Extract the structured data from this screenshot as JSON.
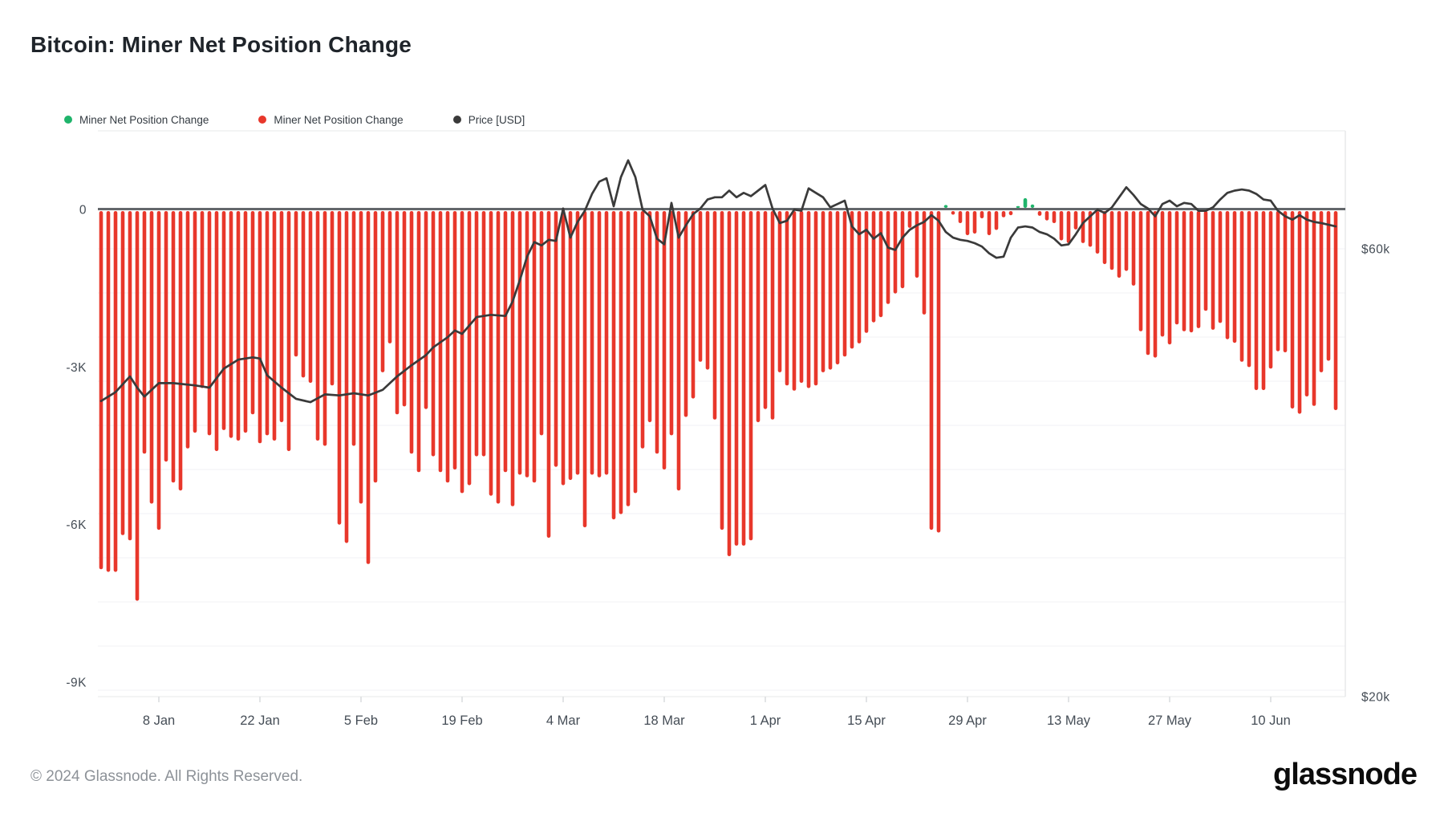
{
  "header": {
    "title": "Bitcoin: Miner Net Position Change"
  },
  "legend": {
    "items": [
      {
        "label": "Miner Net Position Change",
        "color": "#1fb46b",
        "icon": "green-dot"
      },
      {
        "label": "Miner Net Position Change",
        "color": "#e8372b",
        "icon": "red-dot"
      },
      {
        "label": "Price [USD]",
        "color": "#3a3a3a",
        "icon": "black-dot"
      }
    ]
  },
  "footer": {
    "copyright": "© 2024 Glassnode. All Rights Reserved.",
    "logo_text": "glassnode"
  },
  "colors": {
    "positive_bar": "#1fb46b",
    "negative_bar": "#e8372b",
    "price_line": "#3a3a3a",
    "zero_line": "#63676b",
    "grid_line": "#f2f2f4",
    "plot_border": "#e7e8ea",
    "tick_mark": "#d9dbdd",
    "axis_text": "#454d56",
    "background": "#ffffff"
  },
  "chart_data": {
    "type": "bar",
    "subtype": "bar+line-overlay",
    "title": "Bitcoin: Miner Net Position Change",
    "x_start_date": "2023-12-31",
    "x_interval": "1 day",
    "grid": "horizontal, very light",
    "legend_position": "top-left",
    "ylim_left_btc": [
      -9500,
      500
    ],
    "ylim_right_usd_k": [
      20,
      70
    ],
    "y_ticks_left": [
      {
        "label": "0",
        "value": 0
      },
      {
        "label": "-3K",
        "value": -3000
      },
      {
        "label": "-6K",
        "value": -6000
      },
      {
        "label": "-9K",
        "value": -9000
      }
    ],
    "y_ticks_right": [
      {
        "label": "$60k",
        "value": 60
      },
      {
        "label": "$20k",
        "value": 20
      }
    ],
    "x_ticks": [
      {
        "label": "8 Jan",
        "day": 8
      },
      {
        "label": "22 Jan",
        "day": 22
      },
      {
        "label": "5 Feb",
        "day": 36
      },
      {
        "label": "19 Feb",
        "day": 50
      },
      {
        "label": "4 Mar",
        "day": 64
      },
      {
        "label": "18 Mar",
        "day": 78
      },
      {
        "label": "1 Apr",
        "day": 92
      },
      {
        "label": "15 Apr",
        "day": 106
      },
      {
        "label": "29 Apr",
        "day": 120
      },
      {
        "label": "13 May",
        "day": 134
      },
      {
        "label": "27 May",
        "day": 148
      },
      {
        "label": "10 Jun",
        "day": 162
      }
    ],
    "bar_series": {
      "name": "Miner Net Position Change",
      "unit": "BTC",
      "positive_color": "#1fb46b",
      "negative_color": "#e8372b",
      "values": [
        -6850,
        -6900,
        -6900,
        -6200,
        -6300,
        -7450,
        -4650,
        -5600,
        -6100,
        -4800,
        -5200,
        -5350,
        -4550,
        -4250,
        -3400,
        -4300,
        -4600,
        -4200,
        -4350,
        -4400,
        -4250,
        -3900,
        -4450,
        -4300,
        -4400,
        -4050,
        -4600,
        -2800,
        -3200,
        -3300,
        -4400,
        -4500,
        -3350,
        -6000,
        -6350,
        -4500,
        -5600,
        -6750,
        -5200,
        -3100,
        -2550,
        -3900,
        -3750,
        -4650,
        -5000,
        -3800,
        -4700,
        -5000,
        -5200,
        -4950,
        -5400,
        -5250,
        -4700,
        -4700,
        -5450,
        -5600,
        -5000,
        -5650,
        -5050,
        -5100,
        -5200,
        -4300,
        -6250,
        -4900,
        -5250,
        -5150,
        -5050,
        -6050,
        -5050,
        -5100,
        -5050,
        -5900,
        -5800,
        -5650,
        -5400,
        -4550,
        -4050,
        -4650,
        -4950,
        -4300,
        -5350,
        -3950,
        -3600,
        -2900,
        -3050,
        -4000,
        -6100,
        -6600,
        -6400,
        -6400,
        -6300,
        -4050,
        -3800,
        -4000,
        -3100,
        -3350,
        -3450,
        -3300,
        -3400,
        -3350,
        -3100,
        -3050,
        -2950,
        -2800,
        -2650,
        -2550,
        -2350,
        -2150,
        -2050,
        -1800,
        -1600,
        -1500,
        -350,
        -1300,
        -2000,
        -6100,
        -6150,
        70,
        -100,
        -260,
        -490,
        -460,
        -170,
        -490,
        -390,
        -150,
        -110,
        50,
        200,
        80,
        -120,
        -210,
        -260,
        -590,
        -640,
        -380,
        -640,
        -710,
        -840,
        -1040,
        -1150,
        -1300,
        -1170,
        -1450,
        -2320,
        -2770,
        -2820,
        -2420,
        -2570,
        -2190,
        -2320,
        -2340,
        -2260,
        -1930,
        -2290,
        -2160,
        -2470,
        -2540,
        -2900,
        -3000,
        -3440,
        -3440,
        -3030,
        -2700,
        -2720,
        -3790,
        -3890,
        -3560,
        -3740,
        -3100,
        -2880,
        -3820
      ]
    },
    "line_series": {
      "name": "Price [USD]",
      "unit": "USD thousands",
      "color": "#3a3a3a",
      "points": [
        [
          0,
          46.4
        ],
        [
          2,
          47.2
        ],
        [
          4,
          48.6
        ],
        [
          5,
          47.6
        ],
        [
          6,
          46.8
        ],
        [
          8,
          48.0
        ],
        [
          10,
          48.0
        ],
        [
          13,
          47.8
        ],
        [
          15,
          47.6
        ],
        [
          17,
          49.3
        ],
        [
          19,
          50.1
        ],
        [
          21,
          50.3
        ],
        [
          22,
          50.2
        ],
        [
          23,
          48.7
        ],
        [
          25,
          47.6
        ],
        [
          27,
          46.6
        ],
        [
          29,
          46.3
        ],
        [
          31,
          47.0
        ],
        [
          33,
          46.9
        ],
        [
          35,
          47.1
        ],
        [
          37,
          46.9
        ],
        [
          39,
          47.4
        ],
        [
          41,
          48.6
        ],
        [
          43,
          49.6
        ],
        [
          45,
          50.5
        ],
        [
          46,
          51.2
        ],
        [
          48,
          52.1
        ],
        [
          49,
          52.7
        ],
        [
          50,
          52.4
        ],
        [
          52,
          53.9
        ],
        [
          54,
          54.1
        ],
        [
          56,
          54.0
        ],
        [
          57,
          55.3
        ],
        [
          58,
          57.2
        ],
        [
          59,
          59.3
        ],
        [
          60,
          60.6
        ],
        [
          61,
          60.3
        ],
        [
          62,
          60.8
        ],
        [
          63,
          60.7
        ],
        [
          64,
          63.6
        ],
        [
          65,
          61.0
        ],
        [
          66,
          62.4
        ],
        [
          67,
          63.4
        ],
        [
          68,
          64.9
        ],
        [
          69,
          66.0
        ],
        [
          70,
          66.3
        ],
        [
          71,
          63.8
        ],
        [
          72,
          66.4
        ],
        [
          73,
          67.9
        ],
        [
          74,
          66.4
        ],
        [
          75,
          63.5
        ],
        [
          76,
          62.9
        ],
        [
          77,
          60.9
        ],
        [
          78,
          60.4
        ],
        [
          79,
          64.1
        ],
        [
          80,
          61.0
        ],
        [
          81,
          62.1
        ],
        [
          82,
          63.1
        ],
        [
          83,
          63.6
        ],
        [
          84,
          64.4
        ],
        [
          85,
          64.6
        ],
        [
          86,
          64.6
        ],
        [
          87,
          65.2
        ],
        [
          88,
          64.6
        ],
        [
          89,
          65.0
        ],
        [
          90,
          64.7
        ],
        [
          91,
          65.2
        ],
        [
          92,
          65.7
        ],
        [
          93,
          63.6
        ],
        [
          94,
          62.3
        ],
        [
          95,
          62.5
        ],
        [
          96,
          63.5
        ],
        [
          97,
          63.4
        ],
        [
          98,
          65.4
        ],
        [
          99,
          65.0
        ],
        [
          100,
          64.6
        ],
        [
          101,
          63.7
        ],
        [
          102,
          64.0
        ],
        [
          103,
          64.3
        ],
        [
          104,
          62.0
        ],
        [
          105,
          61.3
        ],
        [
          106,
          61.7
        ],
        [
          107,
          60.9
        ],
        [
          108,
          61.4
        ],
        [
          109,
          60.1
        ],
        [
          110,
          59.9
        ],
        [
          111,
          61.0
        ],
        [
          112,
          61.7
        ],
        [
          113,
          62.1
        ],
        [
          114,
          62.4
        ],
        [
          115,
          63.0
        ],
        [
          116,
          62.5
        ],
        [
          117,
          61.5
        ],
        [
          118,
          61.0
        ],
        [
          119,
          60.8
        ],
        [
          120,
          60.7
        ],
        [
          121,
          60.5
        ],
        [
          122,
          60.2
        ],
        [
          123,
          59.6
        ],
        [
          124,
          59.2
        ],
        [
          125,
          59.3
        ],
        [
          126,
          61.0
        ],
        [
          127,
          61.9
        ],
        [
          128,
          62.0
        ],
        [
          129,
          61.9
        ],
        [
          130,
          61.5
        ],
        [
          131,
          61.3
        ],
        [
          132,
          60.9
        ],
        [
          133,
          60.3
        ],
        [
          134,
          60.4
        ],
        [
          135,
          61.3
        ],
        [
          136,
          62.3
        ],
        [
          137,
          62.9
        ],
        [
          138,
          63.5
        ],
        [
          139,
          63.2
        ],
        [
          140,
          63.7
        ],
        [
          141,
          64.6
        ],
        [
          142,
          65.5
        ],
        [
          143,
          64.8
        ],
        [
          144,
          64.0
        ],
        [
          145,
          63.6
        ],
        [
          146,
          62.9
        ],
        [
          147,
          64.0
        ],
        [
          148,
          64.3
        ],
        [
          149,
          63.8
        ],
        [
          150,
          64.1
        ],
        [
          151,
          64.0
        ],
        [
          152,
          63.4
        ],
        [
          153,
          63.4
        ],
        [
          154,
          63.7
        ],
        [
          155,
          64.4
        ],
        [
          156,
          65.0
        ],
        [
          157,
          65.2
        ],
        [
          158,
          65.3
        ],
        [
          159,
          65.2
        ],
        [
          160,
          64.9
        ],
        [
          161,
          64.4
        ],
        [
          162,
          64.3
        ],
        [
          163,
          63.4
        ],
        [
          164,
          62.9
        ],
        [
          165,
          62.6
        ],
        [
          166,
          63.0
        ],
        [
          167,
          62.6
        ],
        [
          168,
          62.4
        ],
        [
          169,
          62.3
        ],
        [
          171,
          62.0
        ]
      ]
    }
  }
}
